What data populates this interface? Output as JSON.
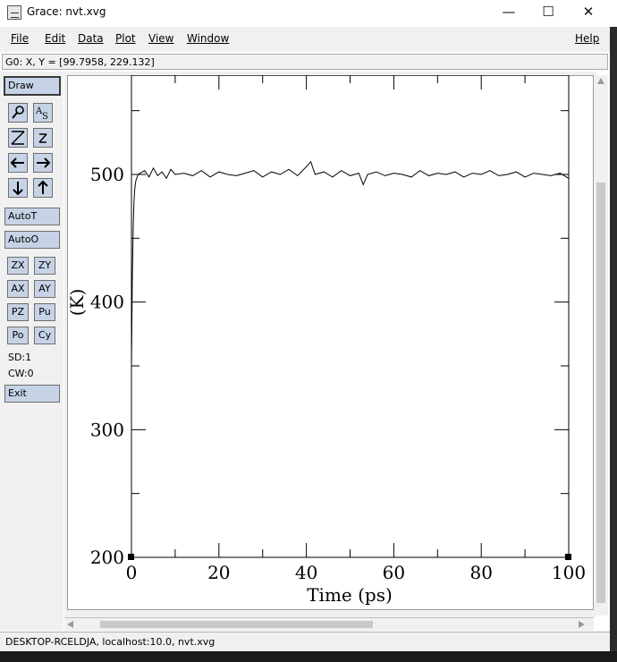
{
  "window": {
    "title": "Grace: nvt.xvg",
    "minimize": "—",
    "maximize": "☐",
    "close": "✕"
  },
  "menu": {
    "file": "File",
    "edit": "Edit",
    "data": "Data",
    "plot": "Plot",
    "view": "View",
    "window": "Window",
    "help": "Help"
  },
  "readout": "G0: X, Y = [99.7958, 229.132]",
  "toolbar": {
    "draw": "Draw",
    "autot": "AutoT",
    "autoo": "AutoO",
    "zx": "ZX",
    "zy": "ZY",
    "ax": "AX",
    "ay": "AY",
    "pz": "PZ",
    "pu": "Pu",
    "po": "Po",
    "cy": "Cy",
    "sd": "SD:1",
    "cw": "CW:0",
    "exit": "Exit",
    "icons": [
      "magnifier-icon",
      "text-as-icon",
      "autoscale-Z-icon",
      "zoom-z-icon",
      "arrow-left-icon",
      "arrow-right-icon",
      "arrow-down-icon",
      "arrow-up-icon"
    ]
  },
  "status": "DESKTOP-RCELDJA, localhost:10.0, nvt.xvg",
  "chart_data": {
    "type": "line",
    "xlabel": "Time (ps)",
    "ylabel": "(K)",
    "xlim": [
      0,
      100
    ],
    "ylim": [
      200,
      500
    ],
    "x_ticks": [
      0,
      20,
      40,
      60,
      80,
      100
    ],
    "y_ticks": [
      200,
      300,
      400,
      500
    ],
    "series": [
      {
        "color": "#000000",
        "x": [
          0,
          0.2,
          0.4,
          0.6,
          0.8,
          1.0,
          1.5,
          2.0,
          3,
          4,
          5,
          6,
          7,
          8,
          9,
          10,
          12,
          14,
          16,
          18,
          20,
          22,
          24,
          26,
          28,
          30,
          32,
          34,
          36,
          38,
          40,
          41,
          42,
          44,
          46,
          48,
          50,
          52,
          53,
          54,
          56,
          58,
          60,
          62,
          64,
          66,
          68,
          70,
          72,
          74,
          76,
          78,
          80,
          82,
          84,
          86,
          88,
          90,
          92,
          94,
          96,
          98,
          100
        ],
        "values": [
          350,
          420,
          460,
          480,
          490,
          495,
          500,
          501,
          503,
          498,
          505,
          499,
          502,
          497,
          504,
          500,
          501,
          499,
          503,
          498,
          502,
          500,
          499,
          501,
          503,
          498,
          502,
          500,
          504,
          499,
          506,
          510,
          500,
          502,
          498,
          503,
          499,
          501,
          492,
          500,
          502,
          499,
          501,
          500,
          498,
          503,
          499,
          501,
          500,
          502,
          498,
          501,
          500,
          503,
          499,
          500,
          502,
          498,
          501,
          500,
          499,
          501,
          497
        ]
      }
    ]
  }
}
